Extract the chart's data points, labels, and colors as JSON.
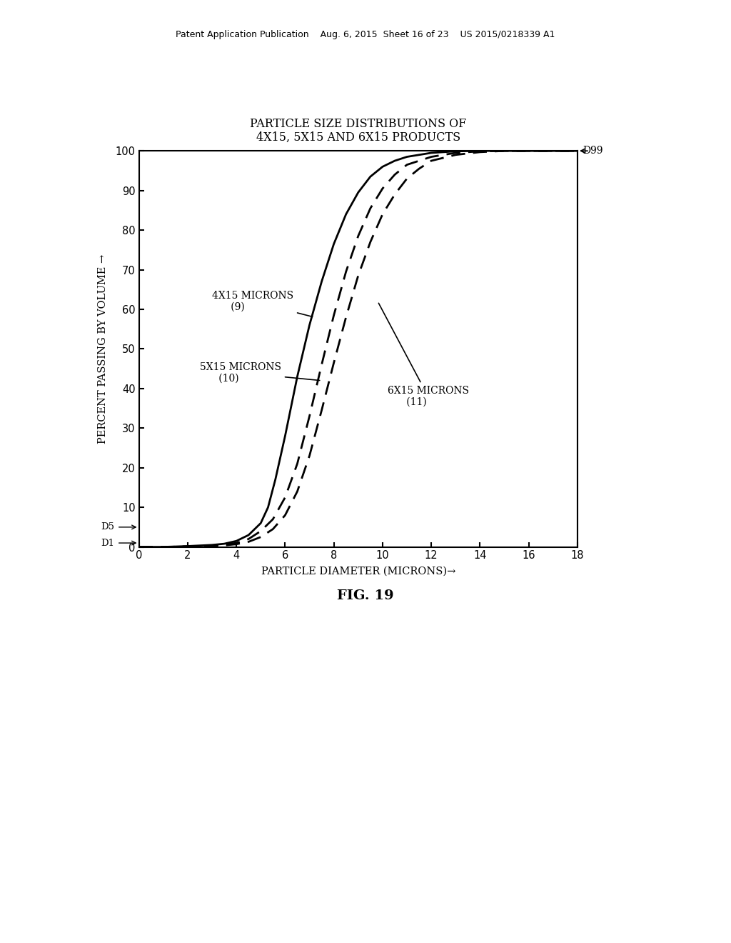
{
  "title_line1": "PARTICLE SIZE DISTRIBUTIONS OF",
  "title_line2": "4X15, 5X15 AND 6X15 PRODUCTS",
  "xlabel": "PARTICLE DIAMETER (MICRONS)→",
  "ylabel": "PERCENT PASSING BY VOLUME →",
  "fig_label": "FIG. 19",
  "header_text": "Patent Application Publication    Aug. 6, 2015  Sheet 16 of 23    US 2015/0218339 A1",
  "xlim": [
    0,
    18
  ],
  "ylim": [
    0,
    100
  ],
  "xticks": [
    0,
    2,
    4,
    6,
    8,
    10,
    12,
    14,
    16,
    18
  ],
  "yticks": [
    0,
    10,
    20,
    30,
    40,
    50,
    60,
    70,
    80,
    90,
    100
  ],
  "curve_9_x": [
    0,
    1,
    2,
    3,
    3.5,
    4.0,
    4.5,
    5.0,
    5.3,
    5.6,
    6.0,
    6.5,
    7.0,
    7.5,
    8.0,
    8.5,
    9.0,
    9.5,
    10.0,
    10.5,
    11.0,
    12.0,
    13.0,
    14.0,
    15.0,
    16.0,
    17.0,
    18.0
  ],
  "curve_9_y": [
    0,
    0,
    0.2,
    0.5,
    0.8,
    1.5,
    3.0,
    6.0,
    10.0,
    17.0,
    28.0,
    43.0,
    56.0,
    67.0,
    76.5,
    84.0,
    89.5,
    93.5,
    96.0,
    97.5,
    98.5,
    99.5,
    99.9,
    100,
    100,
    100,
    100,
    100
  ],
  "curve_10_x": [
    0,
    1,
    2,
    3,
    3.5,
    4.0,
    4.5,
    5.0,
    5.5,
    6.0,
    6.5,
    7.0,
    7.5,
    8.0,
    8.5,
    9.0,
    9.5,
    10.0,
    10.5,
    11.0,
    12.0,
    13.0,
    14.0,
    15.0,
    16.0,
    17.0,
    18.0
  ],
  "curve_10_y": [
    0,
    0,
    0.1,
    0.3,
    0.6,
    1.0,
    2.0,
    4.0,
    7.0,
    12.5,
    21.0,
    33.0,
    46.0,
    58.5,
    69.5,
    78.5,
    85.5,
    90.5,
    94.0,
    96.5,
    98.5,
    99.5,
    99.9,
    100,
    100,
    100,
    100
  ],
  "curve_11_x": [
    0,
    1,
    2,
    3,
    3.5,
    4.0,
    4.5,
    5.0,
    5.5,
    6.0,
    6.5,
    7.0,
    7.5,
    8.0,
    8.5,
    9.0,
    9.5,
    10.0,
    10.5,
    11.0,
    11.5,
    12.0,
    13.0,
    14.0,
    15.0,
    16.0,
    17.0,
    18.0
  ],
  "curve_11_y": [
    0,
    0,
    0.1,
    0.2,
    0.4,
    0.7,
    1.3,
    2.5,
    4.5,
    8.0,
    14.0,
    23.0,
    34.5,
    46.5,
    58.0,
    68.5,
    77.0,
    84.0,
    89.0,
    93.0,
    95.5,
    97.5,
    99.0,
    99.7,
    100,
    100,
    100,
    100
  ],
  "background_color": "#ffffff",
  "line_color": "#000000",
  "D5_y": 5,
  "D1_y": 1
}
